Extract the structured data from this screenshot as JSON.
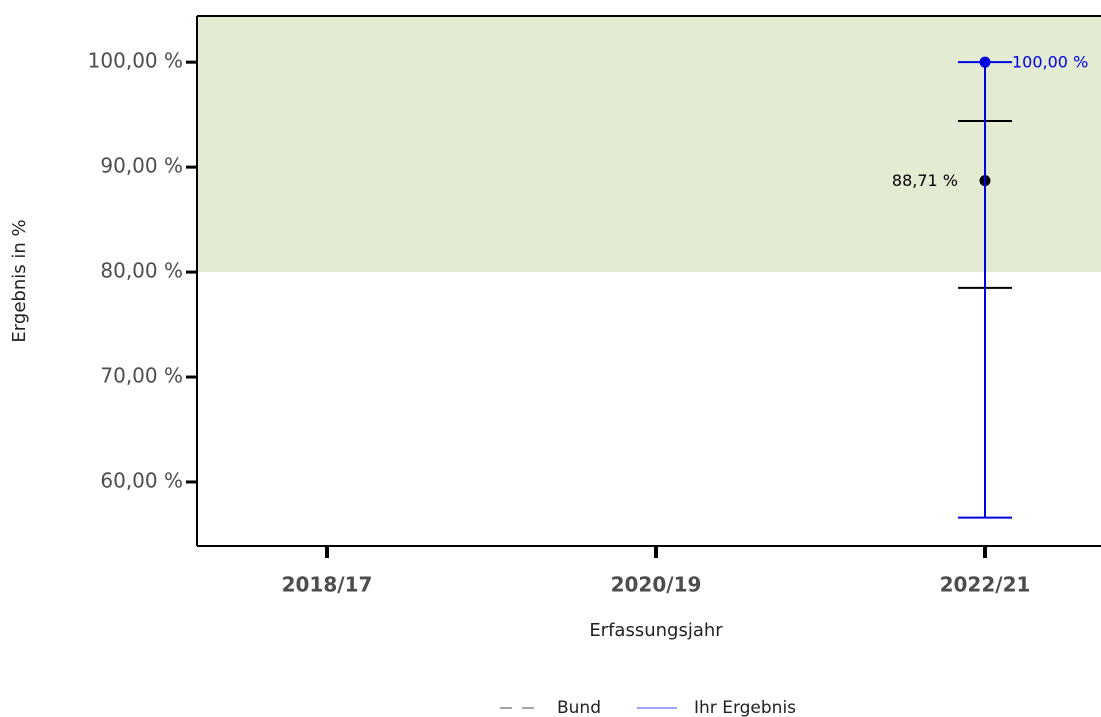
{
  "chart_data": {
    "type": "errorbar",
    "x_label": "Erfassungsjahr",
    "y_label": "Ergebnis in %",
    "categories": [
      "2018/17",
      "2020/19",
      "2022/21"
    ],
    "ylim": [
      53.9,
      104.4
    ],
    "yticks": [
      {
        "value": 60,
        "label": "60,00 %"
      },
      {
        "value": 70,
        "label": "70,00 %"
      },
      {
        "value": 80,
        "label": "80,00 %"
      },
      {
        "value": 90,
        "label": "90,00 %"
      },
      {
        "value": 100,
        "label": "100,00 %"
      }
    ],
    "target_min": 80,
    "target_color": "#e3ebd3",
    "series": [
      {
        "name": "Bund",
        "color": "#000000",
        "legend_color": "#a6a6a6",
        "legend_style": "dashed",
        "values": [
          null,
          null,
          88.71
        ],
        "value_labels": [
          null,
          null,
          "88,71 %"
        ],
        "lower": [
          null,
          null,
          78.5
        ],
        "upper": [
          null,
          null,
          94.4
        ]
      },
      {
        "name": "Ihr Ergebnis",
        "color": "#0000e0",
        "legend_color": "#a3a3f5",
        "legend_style": "solid",
        "values": [
          null,
          null,
          100
        ],
        "value_labels": [
          null,
          null,
          "100,00 %"
        ],
        "lower": [
          null,
          null,
          56.6
        ],
        "upper": [
          null,
          null,
          100
        ]
      }
    ],
    "legend": "bottom"
  }
}
